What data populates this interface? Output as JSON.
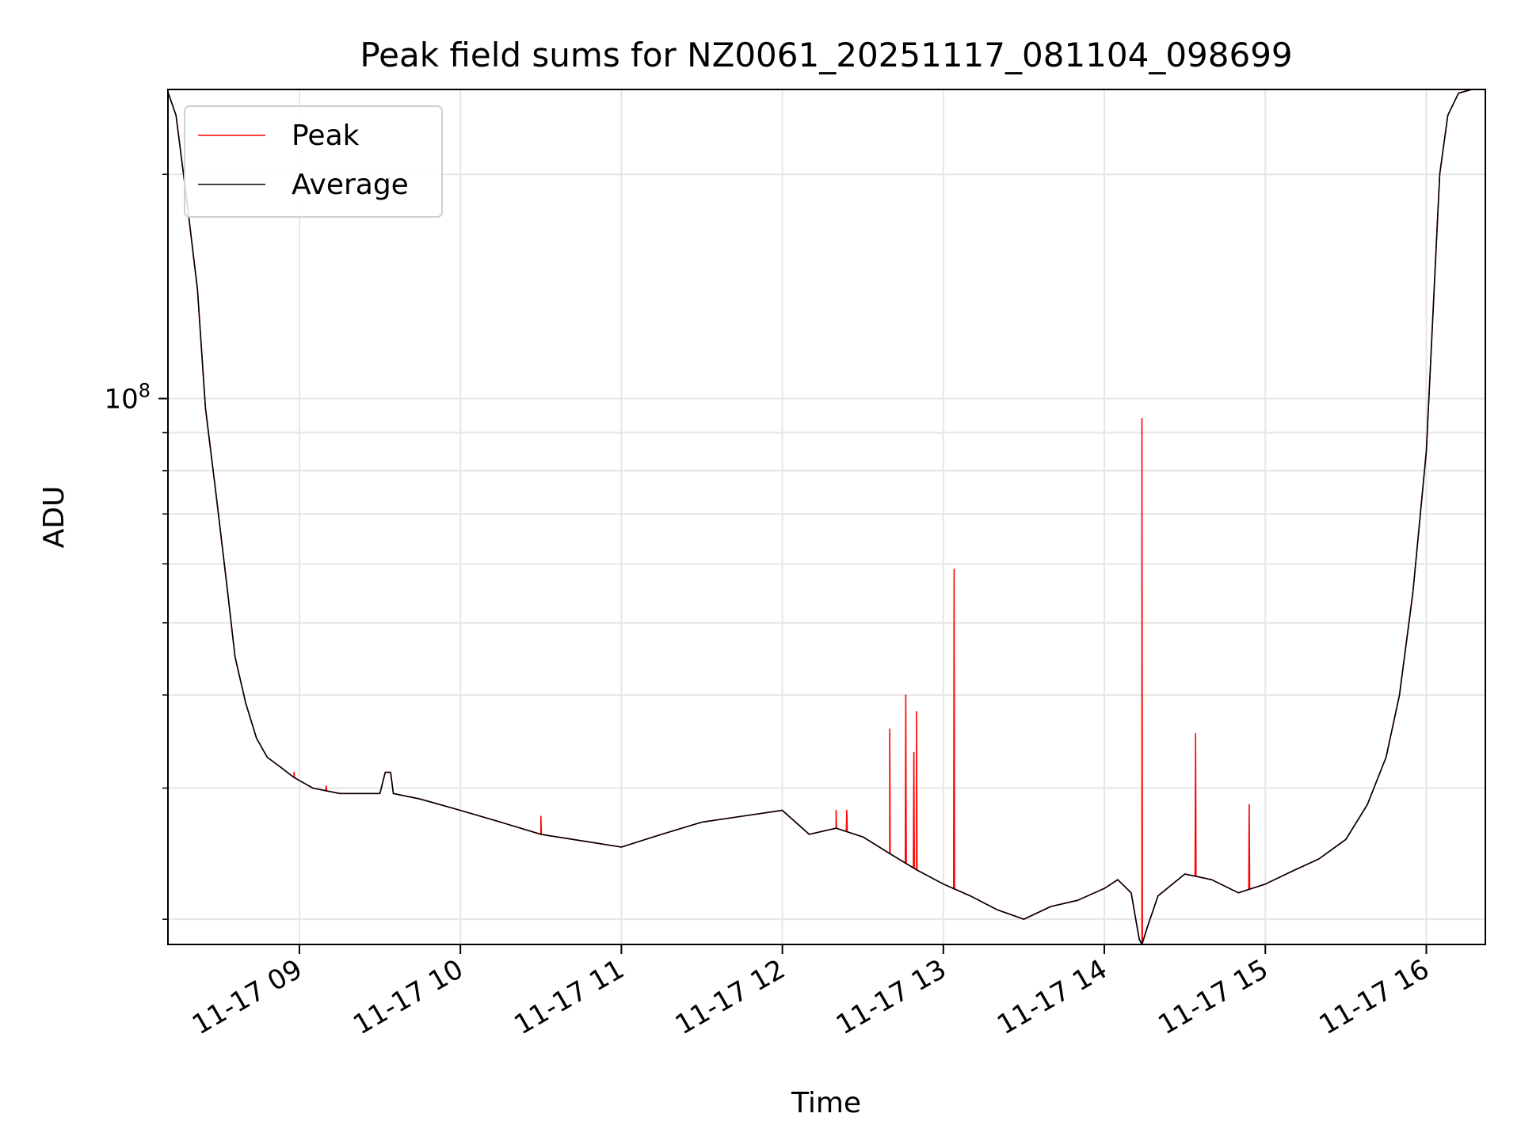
{
  "chart_data": {
    "type": "line",
    "title": "Peak field sums for NZ0061_20251117_081104_098699",
    "xlabel": "Time",
    "ylabel": "ADU",
    "y_scale": "log",
    "ylim": [
      18500000,
      260000000
    ],
    "xlim": [
      "2025-11-17 08:11",
      "2025-11-17 16:22"
    ],
    "grid": true,
    "legend": "top-left",
    "x_tick_labels": [
      "11-17 09",
      "11-17 10",
      "11-17 11",
      "11-17 12",
      "11-17 13",
      "11-17 14",
      "11-17 15",
      "11-17 16"
    ],
    "x_tick_values": [
      "2025-11-17 09:00",
      "2025-11-17 10:00",
      "2025-11-17 11:00",
      "2025-11-17 12:00",
      "2025-11-17 13:00",
      "2025-11-17 14:00",
      "2025-11-17 15:00",
      "2025-11-17 16:00"
    ],
    "y_tick_labels": [
      {
        "base": "10",
        "exp": "8"
      }
    ],
    "y_tick_values": [
      100000000
    ],
    "y_minor_values": [
      20000000,
      30000000,
      40000000,
      50000000,
      60000000,
      70000000,
      80000000,
      90000000,
      200000000
    ],
    "colors": {
      "Peak": "#ff0000",
      "Average": "#000000"
    },
    "series": [
      {
        "name": "Average",
        "x": [
          "2025-11-17 08:11",
          "2025-11-17 08:14",
          "2025-11-17 08:18",
          "2025-11-17 08:22",
          "2025-11-17 08:25",
          "2025-11-17 08:29",
          "2025-11-17 08:33",
          "2025-11-17 08:36",
          "2025-11-17 08:40",
          "2025-11-17 08:44",
          "2025-11-17 08:48",
          "2025-11-17 08:53",
          "2025-11-17 08:58",
          "2025-11-17 09:05",
          "2025-11-17 09:15",
          "2025-11-17 09:30",
          "2025-11-17 09:32",
          "2025-11-17 09:34",
          "2025-11-17 09:35",
          "2025-11-17 09:45",
          "2025-11-17 10:00",
          "2025-11-17 10:15",
          "2025-11-17 10:30",
          "2025-11-17 10:45",
          "2025-11-17 11:00",
          "2025-11-17 11:15",
          "2025-11-17 11:30",
          "2025-11-17 11:45",
          "2025-11-17 12:00",
          "2025-11-17 12:10",
          "2025-11-17 12:20",
          "2025-11-17 12:30",
          "2025-11-17 12:40",
          "2025-11-17 12:50",
          "2025-11-17 13:00",
          "2025-11-17 13:10",
          "2025-11-17 13:20",
          "2025-11-17 13:30",
          "2025-11-17 13:40",
          "2025-11-17 13:50",
          "2025-11-17 14:00",
          "2025-11-17 14:05",
          "2025-11-17 14:10",
          "2025-11-17 14:13",
          "2025-11-17 14:14",
          "2025-11-17 14:16",
          "2025-11-17 14:20",
          "2025-11-17 14:30",
          "2025-11-17 14:40",
          "2025-11-17 14:50",
          "2025-11-17 15:00",
          "2025-11-17 15:10",
          "2025-11-17 15:20",
          "2025-11-17 15:30",
          "2025-11-17 15:38",
          "2025-11-17 15:45",
          "2025-11-17 15:50",
          "2025-11-17 15:55",
          "2025-11-17 16:00",
          "2025-11-17 16:02",
          "2025-11-17 16:05",
          "2025-11-17 16:08",
          "2025-11-17 16:12",
          "2025-11-17 16:17",
          "2025-11-17 16:22"
        ],
        "y": [
          258000000,
          240000000,
          185000000,
          140000000,
          97000000,
          74000000,
          56000000,
          45000000,
          39000000,
          35000000,
          33000000,
          32000000,
          31000000,
          30000000,
          29500000,
          29500000,
          31500000,
          31500000,
          29500000,
          29000000,
          28000000,
          27000000,
          26000000,
          25500000,
          25000000,
          26000000,
          27000000,
          27500000,
          28000000,
          26000000,
          26500000,
          25800000,
          24500000,
          23300000,
          22300000,
          21500000,
          20600000,
          20000000,
          20800000,
          21200000,
          22000000,
          22600000,
          21700000,
          18800000,
          18500000,
          19500000,
          21500000,
          23000000,
          22600000,
          21700000,
          22300000,
          23200000,
          24100000,
          25600000,
          28500000,
          33000000,
          40000000,
          55000000,
          85000000,
          120000000,
          200000000,
          240000000,
          257000000,
          260000000,
          260000000
        ]
      },
      {
        "name": "Peak",
        "baseline": "Average",
        "spike_x": [
          "2025-11-17 08:58",
          "2025-11-17 09:10",
          "2025-11-17 10:30",
          "2025-11-17 12:20",
          "2025-11-17 12:24",
          "2025-11-17 12:40",
          "2025-11-17 12:46",
          "2025-11-17 12:49",
          "2025-11-17 12:50",
          "2025-11-17 13:04",
          "2025-11-17 14:14",
          "2025-11-17 14:34",
          "2025-11-17 14:54"
        ],
        "spike_y": [
          31500000,
          30200000,
          27500000,
          28000000,
          28000000,
          36000000,
          40000000,
          33500000,
          38000000,
          59000000,
          94000000,
          35500000,
          28500000
        ]
      }
    ]
  }
}
